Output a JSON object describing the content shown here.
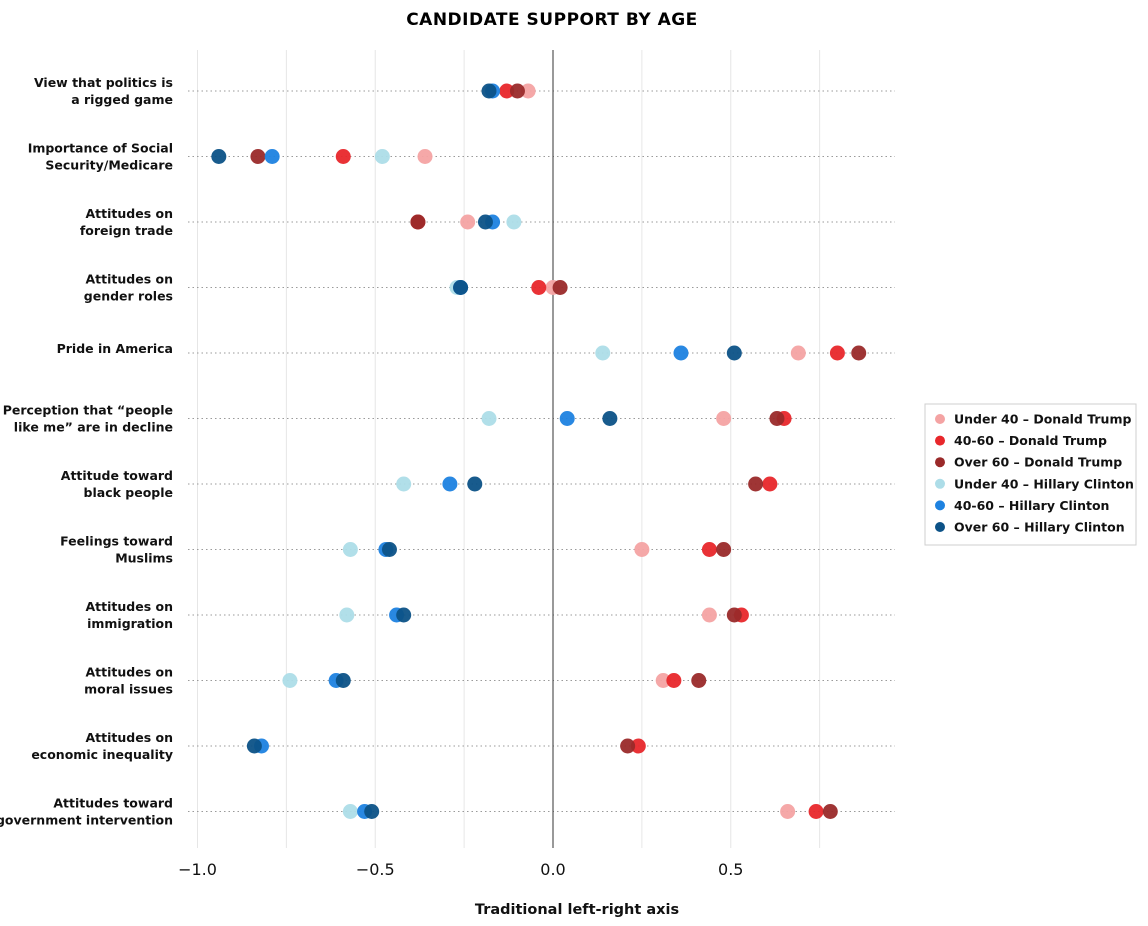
{
  "chart_data": {
    "type": "scatter",
    "title": "CANDIDATE SUPPORT BY AGE",
    "xlabel": "Traditional left-right axis",
    "xlim": [
      -1.0,
      1.0
    ],
    "xticks": [
      {
        "value": -1.0,
        "label": "−1.0"
      },
      {
        "value": -0.5,
        "label": "−0.5"
      },
      {
        "value": 0.0,
        "label": "0.0"
      },
      {
        "value": 0.5,
        "label": "0.5"
      }
    ],
    "grid": true,
    "zero_line": true,
    "legend_position": "right",
    "categories": [
      {
        "id": "rigged",
        "label": [
          "View that politics is",
          "a rigged game"
        ]
      },
      {
        "id": "social",
        "label": [
          "Importance of Social",
          "Security/Medicare"
        ]
      },
      {
        "id": "trade",
        "label": [
          "Attitudes on",
          "foreign trade"
        ]
      },
      {
        "id": "gender",
        "label": [
          "Attitudes on",
          "gender roles"
        ]
      },
      {
        "id": "pride",
        "label": [
          "Pride in America"
        ]
      },
      {
        "id": "decline",
        "label": [
          "Perception that “people",
          "like me” are in decline"
        ]
      },
      {
        "id": "black",
        "label": [
          "Attitude toward",
          "black people"
        ]
      },
      {
        "id": "muslims",
        "label": [
          "Feelings toward",
          "Muslims"
        ]
      },
      {
        "id": "immigration",
        "label": [
          "Attitudes on",
          "immigration"
        ]
      },
      {
        "id": "moral",
        "label": [
          "Attitudes on",
          "moral issues"
        ]
      },
      {
        "id": "inequality",
        "label": [
          "Attitudes on",
          "economic inequality"
        ]
      },
      {
        "id": "government",
        "label": [
          "Attitudes toward",
          "government intervention"
        ]
      }
    ],
    "series": [
      {
        "name": "Under 40 – Donald Trump",
        "color": "#f4a3a3",
        "values": [
          -0.07,
          -0.36,
          -0.24,
          0.0,
          0.69,
          0.48,
          null,
          0.25,
          0.44,
          0.31,
          null,
          0.66
        ]
      },
      {
        "name": "40-60 – Donald Trump",
        "color": "#e8272b",
        "values": [
          -0.13,
          -0.59,
          -0.38,
          -0.04,
          0.8,
          0.65,
          0.61,
          0.44,
          0.53,
          0.34,
          0.24,
          0.74
        ]
      },
      {
        "name": "Over 60 – Donald Trump",
        "color": "#9a2a2a",
        "values": [
          -0.1,
          -0.83,
          -0.38,
          0.02,
          0.86,
          0.63,
          0.57,
          0.48,
          0.51,
          0.41,
          0.21,
          0.78
        ]
      },
      {
        "name": "Under 40 – Hillary Clinton",
        "color": "#addde8",
        "values": [
          null,
          -0.48,
          -0.11,
          -0.27,
          0.14,
          -0.18,
          -0.42,
          -0.57,
          -0.58,
          -0.74,
          null,
          -0.57
        ]
      },
      {
        "name": "40-60 – Hillary Clinton",
        "color": "#1e82e0",
        "values": [
          -0.17,
          -0.79,
          -0.17,
          -0.26,
          0.36,
          0.04,
          -0.29,
          -0.47,
          -0.44,
          -0.61,
          -0.82,
          -0.53
        ]
      },
      {
        "name": "Over 60 – Hillary Clinton",
        "color": "#0c5287",
        "values": [
          -0.18,
          -0.94,
          -0.19,
          -0.26,
          0.51,
          0.16,
          -0.22,
          -0.46,
          -0.42,
          -0.59,
          -0.84,
          -0.51
        ]
      }
    ]
  }
}
